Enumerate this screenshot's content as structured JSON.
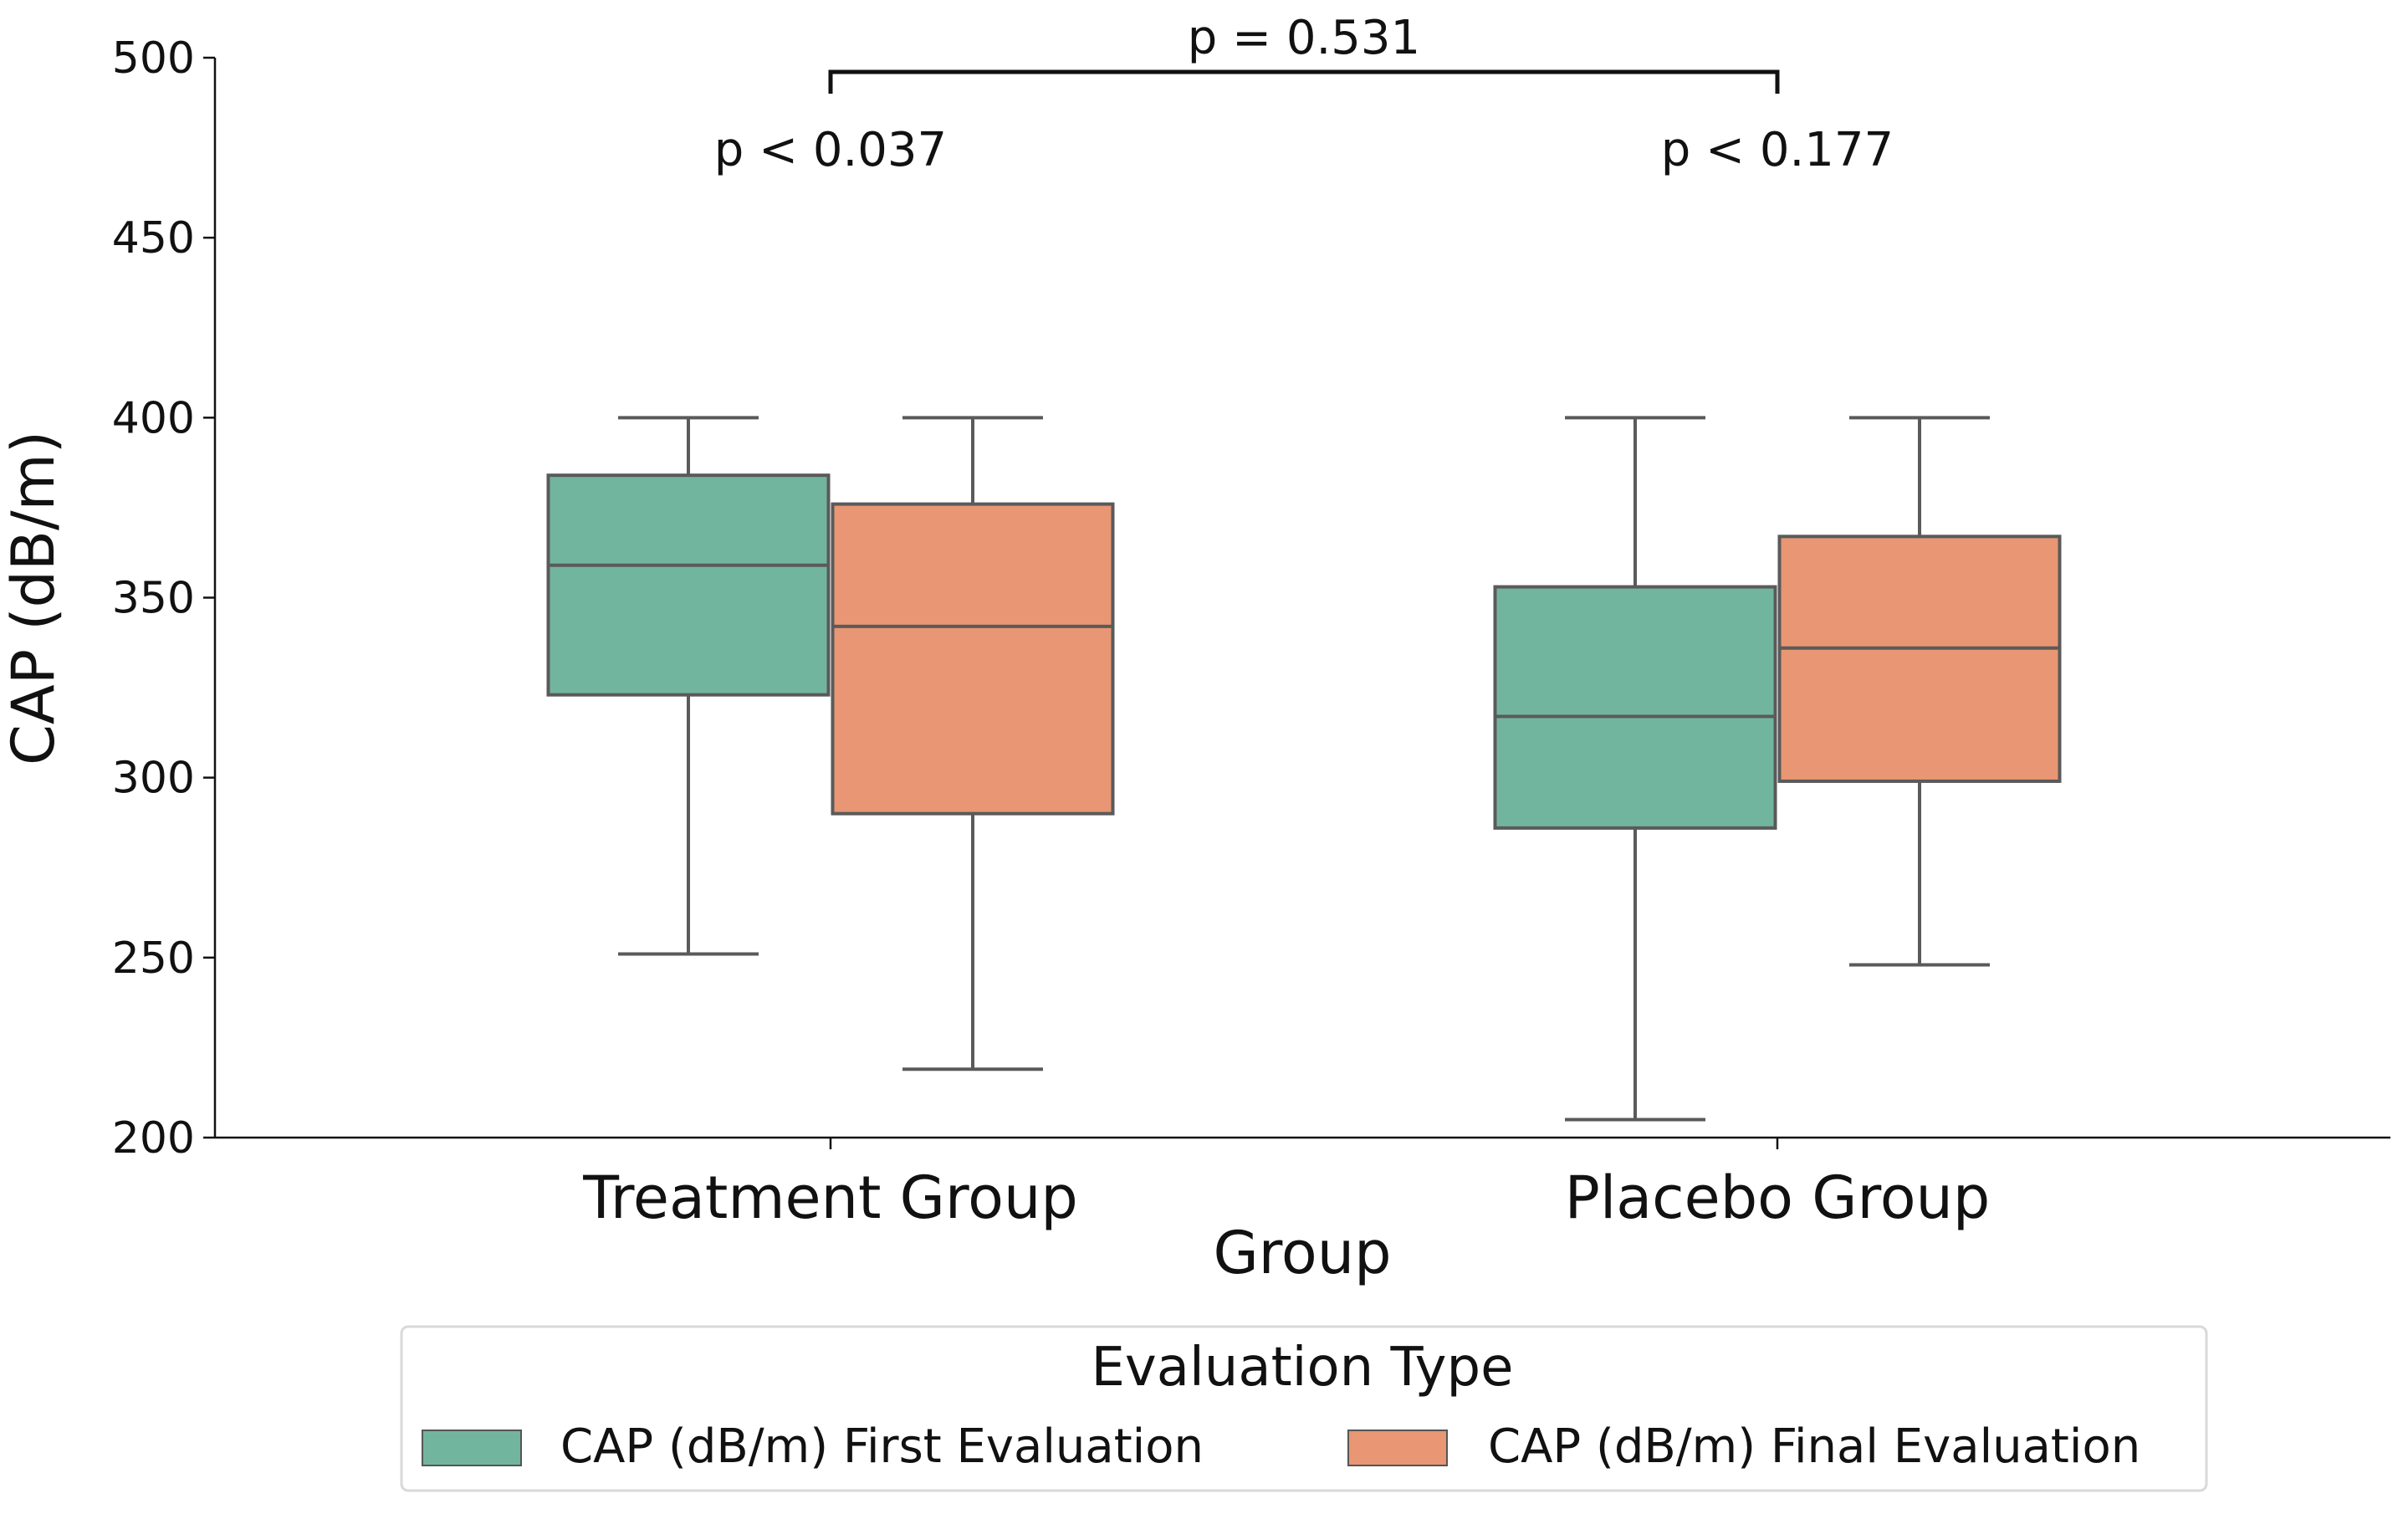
{
  "chart_data": {
    "type": "box",
    "xlabel": "Group",
    "ylabel": "CAP (dB/m)",
    "ylim": [
      200,
      500
    ],
    "yticks": [
      200,
      250,
      300,
      350,
      400,
      450,
      500
    ],
    "categories": [
      "Treatment Group",
      "Placebo Group"
    ],
    "series": [
      {
        "name": "CAP (dB/m) First Evaluation",
        "color": "#72b59f",
        "boxes": [
          {
            "whislo": 251,
            "q1": 323,
            "med": 359,
            "q3": 384,
            "whishi": 400
          },
          {
            "whislo": 205,
            "q1": 286,
            "med": 317,
            "q3": 353,
            "whishi": 400
          }
        ]
      },
      {
        "name": "CAP (dB/m) Final Evaluation",
        "color": "#e89673",
        "boxes": [
          {
            "whislo": 219,
            "q1": 290,
            "med": 342,
            "q3": 376,
            "whishi": 400
          },
          {
            "whislo": 248,
            "q1": 299,
            "med": 336,
            "q3": 367,
            "whishi": 400
          }
        ]
      }
    ],
    "annotations": {
      "within": [
        "p < 0.037",
        "p < 0.177"
      ],
      "between": "p = 0.531"
    },
    "legend": {
      "title": "Evaluation Type",
      "placement": "bottom-center"
    },
    "grid": false
  }
}
